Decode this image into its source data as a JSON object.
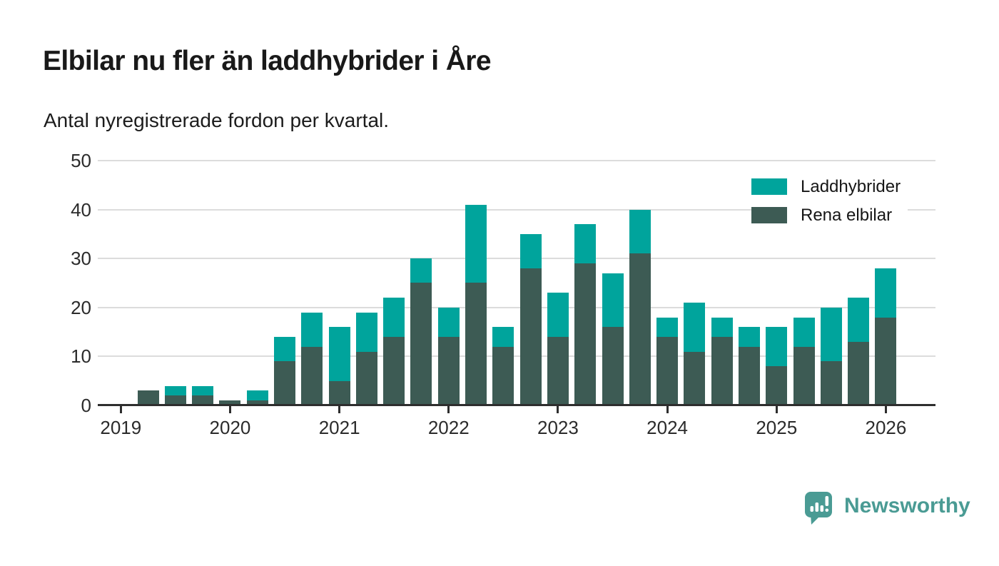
{
  "header": {
    "title": "Elbilar nu fler än laddhybrider i Åre",
    "subtitle": "Antal nyregistrerade fordon per kvartal."
  },
  "chart_data": {
    "type": "bar",
    "stacked": true,
    "title": "Elbilar nu fler än laddhybrider i Åre",
    "subtitle": "Antal nyregistrerade fordon per kvartal.",
    "categories": [
      "2019 Q2",
      "2019 Q3",
      "2019 Q4",
      "2020 Q1",
      "2020 Q2",
      "2020 Q3",
      "2020 Q4",
      "2021 Q1",
      "2021 Q2",
      "2021 Q3",
      "2021 Q4",
      "2022 Q1",
      "2022 Q2",
      "2022 Q3",
      "2022 Q4",
      "2023 Q1",
      "2023 Q2",
      "2023 Q3",
      "2023 Q4",
      "2024 Q1",
      "2024 Q2",
      "2024 Q3",
      "2024 Q4",
      "2025 Q1",
      "2025 Q2",
      "2025 Q3",
      "2025 Q4",
      "2026 Q1"
    ],
    "series": [
      {
        "name": "Laddhybrider",
        "color": "#00a49c",
        "values": [
          0,
          2,
          2,
          0,
          2,
          5,
          7,
          11,
          8,
          8,
          5,
          6,
          16,
          4,
          7,
          9,
          8,
          11,
          9,
          4,
          10,
          4,
          4,
          8,
          6,
          11,
          9,
          10
        ]
      },
      {
        "name": "Rena elbilar",
        "color": "#3d5b54",
        "values": [
          3,
          2,
          2,
          1,
          1,
          9,
          12,
          5,
          11,
          14,
          25,
          14,
          25,
          12,
          28,
          14,
          29,
          16,
          31,
          14,
          11,
          14,
          12,
          8,
          12,
          9,
          13,
          18
        ]
      }
    ],
    "totals": [
      3,
      4,
      4,
      1,
      3,
      14,
      19,
      16,
      19,
      22,
      30,
      20,
      41,
      16,
      35,
      23,
      37,
      27,
      40,
      18,
      21,
      18,
      16,
      16,
      18,
      20,
      22,
      28
    ],
    "ylim": [
      0,
      50
    ],
    "y_ticks": [
      0,
      10,
      20,
      30,
      40,
      50
    ],
    "x_tick_labels": [
      "2019",
      "2020",
      "2021",
      "2022",
      "2023",
      "2024",
      "2025",
      "2026"
    ],
    "legend_position": "top-right",
    "grid": true,
    "xlabel": "",
    "ylabel": ""
  },
  "legend": {
    "items": [
      {
        "label": "Laddhybrider",
        "color": "#00a49c"
      },
      {
        "label": "Rena elbilar",
        "color": "#3d5b54"
      }
    ]
  },
  "footer": {
    "brand": "Newsworthy",
    "brand_color": "#4a9b94"
  }
}
